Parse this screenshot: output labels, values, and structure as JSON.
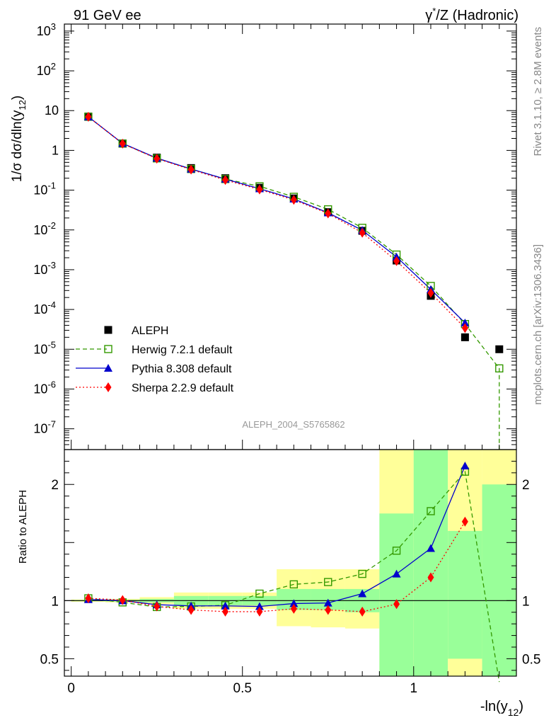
{
  "header": {
    "left": "91 GeV ee",
    "right_gamma": "γ",
    "right_star": "*",
    "right_rest": "/Z (Hadronic)"
  },
  "side_texts": {
    "rivet": "Rivet 3.1.10, ≥ 2.8M events",
    "mcplots": "mcplots.cern.ch [arXiv:1306.3436]"
  },
  "analysis_label": "ALEPH_2004_S5765862",
  "colors": {
    "aleph": "#000000",
    "herwig": "#339900",
    "pythia": "#0000cc",
    "sherpa": "#ff0000",
    "band_yellow": "#ffff99",
    "band_green": "#99ff99",
    "side_text": "#888888"
  },
  "chart_data": [
    {
      "type": "line",
      "panel": "main",
      "ylabel": {
        "prefix": "1/σ  dσ/dln(y",
        "sub": "12",
        "suffix": ")"
      },
      "y_scale": "log",
      "ylim": [
        3e-08,
        1500
      ],
      "xlim": [
        -0.02,
        1.3
      ],
      "y_ticks": [
        {
          "value": 1e-07,
          "base": "10",
          "exp": "-7"
        },
        {
          "value": 1e-06,
          "base": "10",
          "exp": "-6"
        },
        {
          "value": 1e-05,
          "base": "10",
          "exp": "-5"
        },
        {
          "value": 0.0001,
          "base": "10",
          "exp": "-4"
        },
        {
          "value": 0.001,
          "base": "10",
          "exp": "-3"
        },
        {
          "value": 0.01,
          "base": "10",
          "exp": "-2"
        },
        {
          "value": 0.1,
          "base": "10",
          "exp": "-1"
        },
        {
          "value": 1,
          "base": "1",
          "exp": ""
        },
        {
          "value": 10,
          "base": "10",
          "exp": ""
        },
        {
          "value": 100,
          "base": "10",
          "exp": "2"
        },
        {
          "value": 1000,
          "base": "10",
          "exp": "3"
        }
      ],
      "legend_position": "lower-left",
      "x": [
        0.05,
        0.15,
        0.25,
        0.35,
        0.45,
        0.55,
        0.65,
        0.75,
        0.85,
        0.95,
        1.05,
        1.15,
        1.25
      ],
      "series": [
        {
          "key": "aleph",
          "name": "ALEPH",
          "marker": "square-filled",
          "line": "none",
          "values": [
            7.1,
            1.5,
            0.66,
            0.36,
            0.2,
            0.115,
            0.062,
            0.028,
            0.0095,
            0.0017,
            0.00022,
            2e-05,
            1e-05
          ]
        },
        {
          "key": "herwig",
          "name": "Herwig 7.2.1 default",
          "marker": "square-open",
          "line": "dashed",
          "values": [
            7.0,
            1.48,
            0.63,
            0.34,
            0.19,
            0.125,
            0.068,
            0.033,
            0.0113,
            0.0024,
            0.00039,
            4.3e-05,
            3.3e-06
          ]
        },
        {
          "key": "pythia",
          "name": "Pythia 8.308 default",
          "marker": "triangle-filled",
          "line": "solid",
          "values": [
            7.0,
            1.5,
            0.64,
            0.34,
            0.19,
            0.109,
            0.06,
            0.027,
            0.0098,
            0.0021,
            0.00032,
            4.6e-05,
            null
          ]
        },
        {
          "key": "sherpa",
          "name": "Sherpa 2.2.9 default",
          "marker": "diamond-filled",
          "line": "dotted",
          "values": [
            7.0,
            1.48,
            0.62,
            0.33,
            0.18,
            0.104,
            0.057,
            0.026,
            0.0085,
            0.00165,
            0.00026,
            3.4e-05,
            null
          ]
        }
      ]
    },
    {
      "type": "line",
      "panel": "ratio",
      "ylabel": "Ratio to ALEPH",
      "xlabel": {
        "prefix": "-ln(y",
        "sub": "12",
        "suffix": ")"
      },
      "ylim": [
        0.35,
        2.3
      ],
      "xlim": [
        -0.02,
        1.3
      ],
      "x_ticks": [
        {
          "value": 0,
          "label": "0"
        },
        {
          "value": 0.5,
          "label": "0.5"
        },
        {
          "value": 1,
          "label": "1"
        }
      ],
      "y_ticks": [
        {
          "value": 0.5,
          "label": "0.5"
        },
        {
          "value": 1,
          "label": "1"
        },
        {
          "value": 2,
          "label": "2"
        }
      ],
      "bands": [
        {
          "x0": 0.0,
          "x1": 0.1,
          "y_lo": 0.99,
          "y_hi": 1.01,
          "g_lo": 0.995,
          "g_hi": 1.005
        },
        {
          "x0": 0.1,
          "x1": 0.2,
          "y_lo": 0.985,
          "y_hi": 1.015,
          "g_lo": 0.993,
          "g_hi": 1.007
        },
        {
          "x0": 0.2,
          "x1": 0.3,
          "y_lo": 0.97,
          "y_hi": 1.03,
          "g_lo": 0.985,
          "g_hi": 1.015
        },
        {
          "x0": 0.3,
          "x1": 0.4,
          "y_lo": 0.93,
          "y_hi": 1.07,
          "g_lo": 0.96,
          "g_hi": 1.04
        },
        {
          "x0": 0.4,
          "x1": 0.5,
          "y_lo": 0.93,
          "y_hi": 1.07,
          "g_lo": 0.96,
          "g_hi": 1.04
        },
        {
          "x0": 0.5,
          "x1": 0.6,
          "y_lo": 0.93,
          "y_hi": 1.07,
          "g_lo": 0.96,
          "g_hi": 1.04
        },
        {
          "x0": 0.6,
          "x1": 0.7,
          "y_lo": 0.78,
          "y_hi": 1.27,
          "g_lo": 0.92,
          "g_hi": 1.1
        },
        {
          "x0": 0.7,
          "x1": 0.8,
          "y_lo": 0.77,
          "y_hi": 1.27,
          "g_lo": 0.92,
          "g_hi": 1.1
        },
        {
          "x0": 0.8,
          "x1": 0.9,
          "y_lo": 0.76,
          "y_hi": 1.27,
          "g_lo": 0.9,
          "g_hi": 1.1
        },
        {
          "x0": 0.9,
          "x1": 1.0,
          "y_lo": 0.35,
          "y_hi": 2.3,
          "g_lo": 0.35,
          "g_hi": 1.75
        },
        {
          "x0": 1.0,
          "x1": 1.1,
          "y_lo": 0.35,
          "y_hi": 2.3,
          "g_lo": 0.35,
          "g_hi": 2.3
        },
        {
          "x0": 1.1,
          "x1": 1.2,
          "y_lo": 0.35,
          "y_hi": 2.3,
          "g_lo": 0.5,
          "g_hi": 1.6
        },
        {
          "x0": 1.2,
          "x1": 1.3,
          "y_lo": 0.35,
          "y_hi": 2.3,
          "g_lo": 0.35,
          "g_hi": 2.0
        }
      ],
      "x": [
        0.05,
        0.15,
        0.25,
        0.35,
        0.45,
        0.55,
        0.65,
        0.75,
        0.85,
        0.95,
        1.05,
        1.15,
        1.25
      ],
      "series": [
        {
          "key": "herwig",
          "name": "Herwig 7.2.1 default",
          "marker": "square-open",
          "line": "dashed",
          "values": [
            1.02,
            0.985,
            0.945,
            0.95,
            0.96,
            1.06,
            1.14,
            1.16,
            1.23,
            1.43,
            1.77,
            2.11,
            0.3
          ]
        },
        {
          "key": "pythia",
          "name": "Pythia 8.308 default",
          "marker": "triangle-filled",
          "line": "solid",
          "values": [
            1.01,
            1.0,
            0.965,
            0.955,
            0.955,
            0.95,
            0.975,
            0.98,
            1.06,
            1.23,
            1.45,
            2.16,
            null
          ]
        },
        {
          "key": "sherpa",
          "name": "Sherpa 2.2.9 default",
          "marker": "diamond-filled",
          "line": "dotted",
          "values": [
            1.02,
            1.005,
            0.95,
            0.92,
            0.905,
            0.905,
            0.93,
            0.92,
            0.905,
            0.97,
            1.2,
            1.68,
            null
          ]
        }
      ]
    }
  ]
}
